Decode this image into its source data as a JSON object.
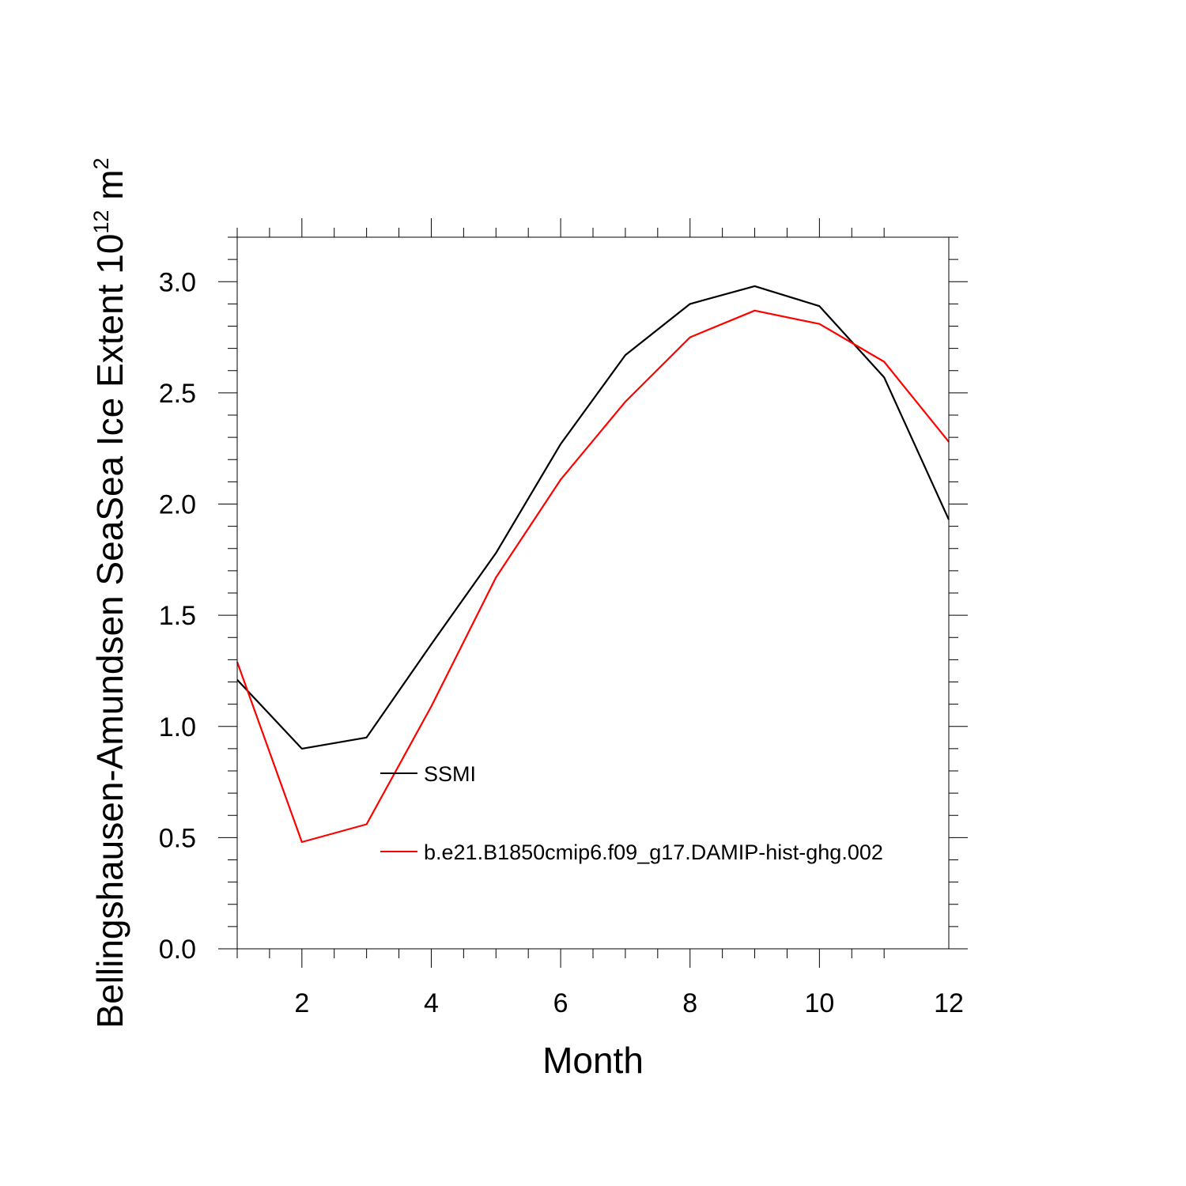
{
  "chart_data": {
    "type": "line",
    "xlabel": "Month",
    "ylabel": {
      "prefix": "Bellingshausen-Amundsen SeaSea Ice Extent 10",
      "exponent": "12",
      "unit": " m",
      "unit_exponent": "2"
    },
    "xlim": [
      1,
      12
    ],
    "ylim": [
      0,
      3.2
    ],
    "x_ticks": [
      2,
      4,
      6,
      8,
      10,
      12
    ],
    "y_ticks": [
      "0.0",
      "0.5",
      "1.0",
      "1.5",
      "2.0",
      "2.5",
      "3.0"
    ],
    "grid": false,
    "legend_position": "inside lower-middle",
    "x": [
      1,
      2,
      3,
      4,
      5,
      6,
      7,
      8,
      9,
      10,
      11,
      12
    ],
    "series": [
      {
        "name": "SSMI",
        "color": "#000000",
        "values": [
          1.21,
          0.9,
          0.95,
          1.37,
          1.78,
          2.27,
          2.67,
          2.9,
          2.98,
          2.89,
          2.57,
          1.93
        ]
      },
      {
        "name": "b.e21.B1850cmip6.f09_g17.DAMIP-hist-ghg.002",
        "color": "#ff0000",
        "values": [
          1.29,
          0.48,
          0.56,
          1.09,
          1.67,
          2.11,
          2.46,
          2.75,
          2.87,
          2.81,
          2.64,
          2.28
        ]
      }
    ]
  }
}
